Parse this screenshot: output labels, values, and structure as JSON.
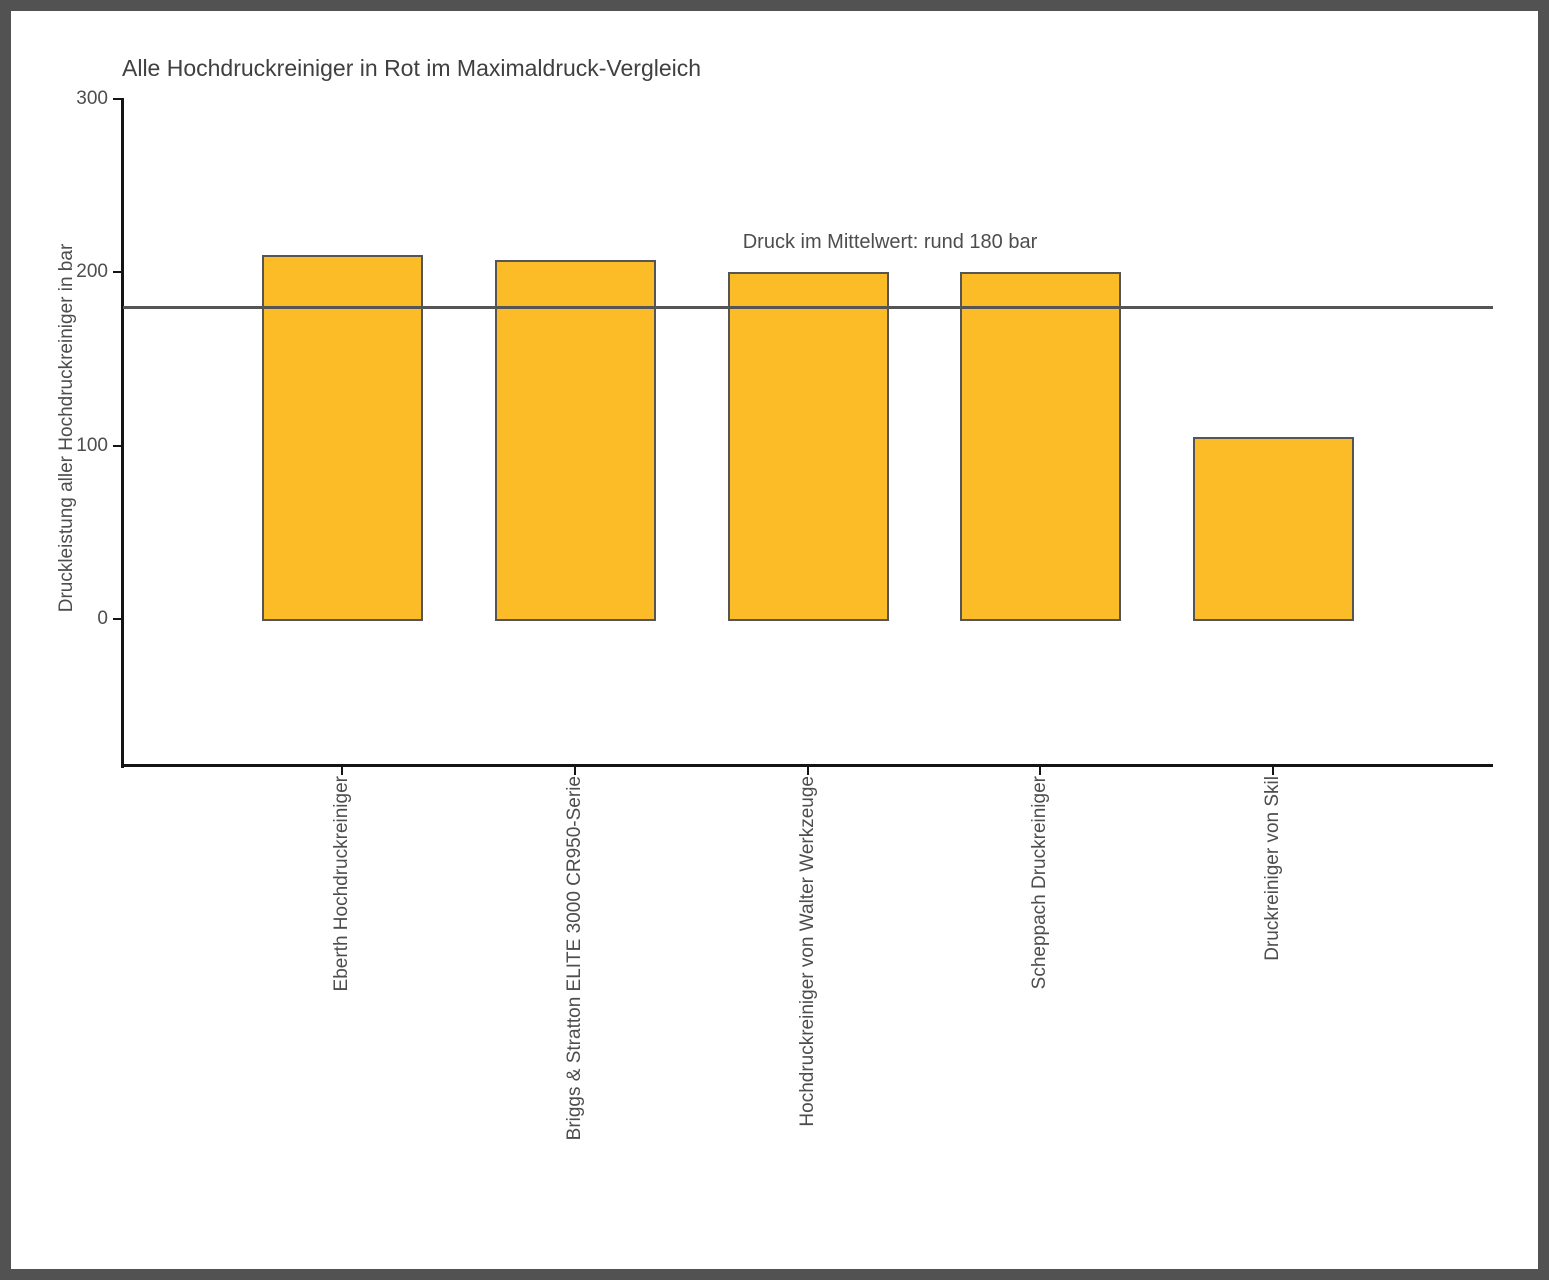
{
  "window": {
    "background": "#ffffff",
    "frame_color": "#525252"
  },
  "chart_data": {
    "type": "bar",
    "title": "Alle Hochdruckreiniger in Rot im Maximaldruck-Vergleich",
    "ylabel": "Druckleistung aller Hochdruckreiniger in bar",
    "xlabel": "",
    "categories": [
      "Eberth Hochdruckreiniger",
      "Briggs & Stratton ELITE 3000 CR950-Serie",
      "Hochdruckreiniger von Walter Werkzeuge",
      "Scheppach Druckreiniger",
      "Druckreiniger von Skil"
    ],
    "values": [
      210,
      207,
      200,
      200,
      105
    ],
    "yticks": [
      0,
      100,
      200,
      300
    ],
    "ylim": [
      -85,
      300
    ],
    "grid": false,
    "legend": "none",
    "mean_line": {
      "value": 180,
      "label": "Druck im Mittelwert: rund 180 bar"
    },
    "colors": {
      "bar_fill": "#FBBC28",
      "bar_border": "#555555",
      "mean_line": "#555555",
      "axis": "#141414",
      "text": "#4D4D4D",
      "title": "#404040"
    }
  }
}
